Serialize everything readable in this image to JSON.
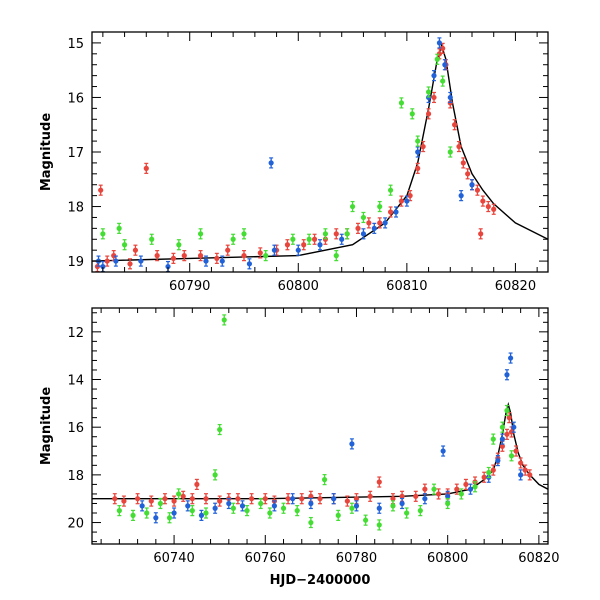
{
  "chart_data": [
    {
      "type": "scatter",
      "panel": "top",
      "xlabel": "",
      "ylabel": "Magnitude",
      "xlim": [
        60781,
        60823
      ],
      "ylim": [
        19.2,
        14.8
      ],
      "y_inverted": true,
      "xticks": [
        60790,
        60800,
        60810,
        60820
      ],
      "yticks": [
        15,
        16,
        17,
        18,
        19
      ],
      "grid": false,
      "legend": "none",
      "series": [
        {
          "color": "#e8453c",
          "points": [
            [
              60781.5,
              19.1
            ],
            [
              60781.8,
              17.7
            ],
            [
              60782.4,
              19.0
            ],
            [
              60783.0,
              18.9
            ],
            [
              60784.5,
              19.05
            ],
            [
              60785.0,
              18.8
            ],
            [
              60786.0,
              17.3
            ],
            [
              60787.0,
              18.9
            ],
            [
              60788.5,
              18.95
            ],
            [
              60789.5,
              18.9
            ],
            [
              60791.0,
              18.9
            ],
            [
              60792.5,
              18.95
            ],
            [
              60793.5,
              18.8
            ],
            [
              60795.0,
              18.9
            ],
            [
              60796.5,
              18.85
            ],
            [
              60798.0,
              18.8
            ],
            [
              60799.0,
              18.7
            ],
            [
              60800.5,
              18.7
            ],
            [
              60801.5,
              18.6
            ],
            [
              60802.5,
              18.6
            ],
            [
              60803.5,
              18.5
            ],
            [
              60804.5,
              18.5
            ],
            [
              60805.5,
              18.4
            ],
            [
              60806.5,
              18.3
            ],
            [
              60807.5,
              18.3
            ],
            [
              60808.5,
              18.1
            ],
            [
              60809.5,
              17.9
            ],
            [
              60810.3,
              17.8
            ],
            [
              60811.0,
              17.3
            ],
            [
              60811.5,
              16.9
            ],
            [
              60812.0,
              16.3
            ],
            [
              60812.5,
              16.0
            ],
            [
              60813.0,
              15.2
            ],
            [
              60813.3,
              15.1
            ],
            [
              60813.6,
              15.4
            ],
            [
              60814.0,
              16.1
            ],
            [
              60814.4,
              16.5
            ],
            [
              60814.8,
              16.9
            ],
            [
              60815.2,
              17.2
            ],
            [
              60815.6,
              17.4
            ],
            [
              60816.0,
              17.6
            ],
            [
              60816.5,
              17.7
            ],
            [
              60817.0,
              17.9
            ],
            [
              60817.5,
              18.0
            ],
            [
              60818.0,
              18.05
            ],
            [
              60816.8,
              18.5
            ]
          ]
        },
        {
          "color": "#2262d9",
          "points": [
            [
              60781.6,
              19.0
            ],
            [
              60782.0,
              19.1
            ],
            [
              60783.2,
              19.0
            ],
            [
              60785.5,
              19.0
            ],
            [
              60788.0,
              19.1
            ],
            [
              60791.5,
              19.0
            ],
            [
              60793.0,
              19.0
            ],
            [
              60795.5,
              19.05
            ],
            [
              60797.5,
              17.2
            ],
            [
              60797.8,
              18.8
            ],
            [
              60800.0,
              18.8
            ],
            [
              60802.0,
              18.7
            ],
            [
              60804.0,
              18.6
            ],
            [
              60806.0,
              18.5
            ],
            [
              60807.0,
              18.4
            ],
            [
              60808.0,
              18.3
            ],
            [
              60809.0,
              18.1
            ],
            [
              60810.0,
              17.9
            ],
            [
              60811.0,
              17.0
            ],
            [
              60812.0,
              16.0
            ],
            [
              60812.5,
              15.6
            ],
            [
              60813.0,
              15.0
            ],
            [
              60813.5,
              15.4
            ],
            [
              60814.0,
              16.0
            ],
            [
              60815.0,
              17.8
            ],
            [
              60816.0,
              17.6
            ]
          ]
        },
        {
          "color": "#44dd33",
          "points": [
            [
              60782.0,
              18.5
            ],
            [
              60783.5,
              18.4
            ],
            [
              60784.0,
              18.7
            ],
            [
              60786.5,
              18.6
            ],
            [
              60789.0,
              18.7
            ],
            [
              60791.0,
              18.5
            ],
            [
              60794.0,
              18.6
            ],
            [
              60795.0,
              18.5
            ],
            [
              60797.0,
              18.9
            ],
            [
              60799.5,
              18.6
            ],
            [
              60801.0,
              18.6
            ],
            [
              60802.5,
              18.5
            ],
            [
              60803.5,
              18.9
            ],
            [
              60804.5,
              18.5
            ],
            [
              60805.0,
              18.0
            ],
            [
              60806.0,
              18.2
            ],
            [
              60807.5,
              18.0
            ],
            [
              60808.5,
              17.7
            ],
            [
              60809.5,
              16.1
            ],
            [
              60810.5,
              16.3
            ],
            [
              60811.0,
              16.8
            ],
            [
              60812.0,
              15.9
            ],
            [
              60812.8,
              15.3
            ],
            [
              60813.3,
              15.7
            ],
            [
              60814.0,
              17.0
            ]
          ]
        }
      ],
      "model_curve": [
        [
          60781,
          19.0
        ],
        [
          60790,
          18.95
        ],
        [
          60800,
          18.9
        ],
        [
          60805,
          18.7
        ],
        [
          60808,
          18.3
        ],
        [
          60810,
          17.8
        ],
        [
          60811,
          17.2
        ],
        [
          60812,
          16.2
        ],
        [
          60812.8,
          15.3
        ],
        [
          60813.2,
          15.05
        ],
        [
          60813.6,
          15.3
        ],
        [
          60814.2,
          16.1
        ],
        [
          60815.0,
          16.9
        ],
        [
          60816.0,
          17.4
        ],
        [
          60817.0,
          17.7
        ],
        [
          60818.0,
          17.95
        ],
        [
          60820.0,
          18.3
        ],
        [
          60823.0,
          18.6
        ]
      ]
    },
    {
      "type": "scatter",
      "panel": "bottom",
      "xlabel": "HJD−2400000",
      "ylabel": "Magnitude",
      "xlim": [
        60722,
        60822
      ],
      "ylim": [
        20.9,
        11.0
      ],
      "y_inverted": true,
      "xticks": [
        60740,
        60760,
        60780,
        60800,
        60820
      ],
      "yticks": [
        12,
        14,
        16,
        18,
        20
      ],
      "grid": false,
      "legend": "none",
      "series": [
        {
          "color": "#e8453c",
          "points": [
            [
              60727,
              19.0
            ],
            [
              60729,
              19.1
            ],
            [
              60732,
              19.0
            ],
            [
              60735,
              19.1
            ],
            [
              60738,
              19.0
            ],
            [
              60740,
              19.1
            ],
            [
              60742,
              18.9
            ],
            [
              60744,
              19.0
            ],
            [
              60745,
              18.4
            ],
            [
              60747,
              19.0
            ],
            [
              60750,
              19.1
            ],
            [
              60752,
              19.0
            ],
            [
              60754,
              19.0
            ],
            [
              60757,
              19.0
            ],
            [
              60760,
              19.0
            ],
            [
              60762,
              19.1
            ],
            [
              60765,
              19.0
            ],
            [
              60768,
              19.0
            ],
            [
              60770,
              18.9
            ],
            [
              60772,
              19.0
            ],
            [
              60775,
              19.0
            ],
            [
              60778,
              19.1
            ],
            [
              60780,
              19.0
            ],
            [
              60783,
              18.9
            ],
            [
              60785,
              18.3
            ],
            [
              60788,
              19.0
            ],
            [
              60790,
              18.9
            ],
            [
              60793,
              18.9
            ],
            [
              60795,
              18.6
            ],
            [
              60798,
              18.8
            ],
            [
              60800,
              18.8
            ],
            [
              60802,
              18.6
            ],
            [
              60804,
              18.4
            ],
            [
              60806,
              18.3
            ],
            [
              60808,
              18.1
            ],
            [
              60810,
              17.8
            ],
            [
              60811,
              17.3
            ],
            [
              60812,
              16.8
            ],
            [
              60813,
              16.3
            ],
            [
              60813.5,
              15.6
            ],
            [
              60814,
              16.2
            ],
            [
              60815,
              17.0
            ],
            [
              60816,
              17.5
            ],
            [
              60817,
              17.8
            ],
            [
              60818,
              18.0
            ]
          ]
        },
        {
          "color": "#2262d9",
          "points": [
            [
              60733,
              19.3
            ],
            [
              60736,
              19.8
            ],
            [
              60740,
              19.6
            ],
            [
              60743,
              19.3
            ],
            [
              60746,
              19.7
            ],
            [
              60749,
              19.4
            ],
            [
              60752,
              19.2
            ],
            [
              60755,
              19.3
            ],
            [
              60762,
              19.3
            ],
            [
              60766,
              19.0
            ],
            [
              60770,
              19.2
            ],
            [
              60775,
              19.0
            ],
            [
              60779,
              16.7
            ],
            [
              60780,
              19.3
            ],
            [
              60785,
              19.4
            ],
            [
              60790,
              19.2
            ],
            [
              60795,
              19.0
            ],
            [
              60799,
              17.0
            ],
            [
              60800,
              18.9
            ],
            [
              60805,
              18.6
            ],
            [
              60809,
              18.1
            ],
            [
              60811,
              17.4
            ],
            [
              60812,
              16.5
            ],
            [
              60813,
              13.8
            ],
            [
              60813.8,
              13.1
            ],
            [
              60814.5,
              16.0
            ],
            [
              60816,
              18.0
            ]
          ]
        },
        {
          "color": "#44dd33",
          "points": [
            [
              60728,
              19.5
            ],
            [
              60731,
              19.7
            ],
            [
              60734,
              19.6
            ],
            [
              60737,
              19.2
            ],
            [
              60739,
              19.8
            ],
            [
              60741,
              18.8
            ],
            [
              60744,
              19.5
            ],
            [
              60747,
              19.6
            ],
            [
              60749,
              18.0
            ],
            [
              60750,
              16.1
            ],
            [
              60751,
              11.5
            ],
            [
              60753,
              19.4
            ],
            [
              60756,
              19.5
            ],
            [
              60759,
              19.2
            ],
            [
              60761,
              19.6
            ],
            [
              60764,
              19.4
            ],
            [
              60767,
              19.5
            ],
            [
              60770,
              20.0
            ],
            [
              60773,
              18.2
            ],
            [
              60776,
              19.7
            ],
            [
              60779,
              19.4
            ],
            [
              60782,
              19.9
            ],
            [
              60785,
              20.1
            ],
            [
              60788,
              19.3
            ],
            [
              60791,
              19.6
            ],
            [
              60794,
              19.5
            ],
            [
              60797,
              18.6
            ],
            [
              60800,
              19.2
            ],
            [
              60803,
              18.8
            ],
            [
              60806,
              18.5
            ],
            [
              60809,
              17.9
            ],
            [
              60810,
              16.5
            ],
            [
              60812,
              16.0
            ],
            [
              60813,
              15.3
            ],
            [
              60814,
              17.2
            ]
          ]
        }
      ],
      "model_curve": [
        [
          60722,
          19.0
        ],
        [
          60760,
          19.0
        ],
        [
          60790,
          18.9
        ],
        [
          60800,
          18.8
        ],
        [
          60805,
          18.6
        ],
        [
          60808,
          18.2
        ],
        [
          60810,
          17.8
        ],
        [
          60811,
          17.2
        ],
        [
          60812,
          16.3
        ],
        [
          60812.8,
          15.4
        ],
        [
          60813.3,
          15.05
        ],
        [
          60813.8,
          15.4
        ],
        [
          60814.5,
          16.3
        ],
        [
          60815.5,
          17.1
        ],
        [
          60816.5,
          17.6
        ],
        [
          60818,
          18.0
        ],
        [
          60820,
          18.4
        ],
        [
          60822,
          18.6
        ]
      ]
    }
  ]
}
